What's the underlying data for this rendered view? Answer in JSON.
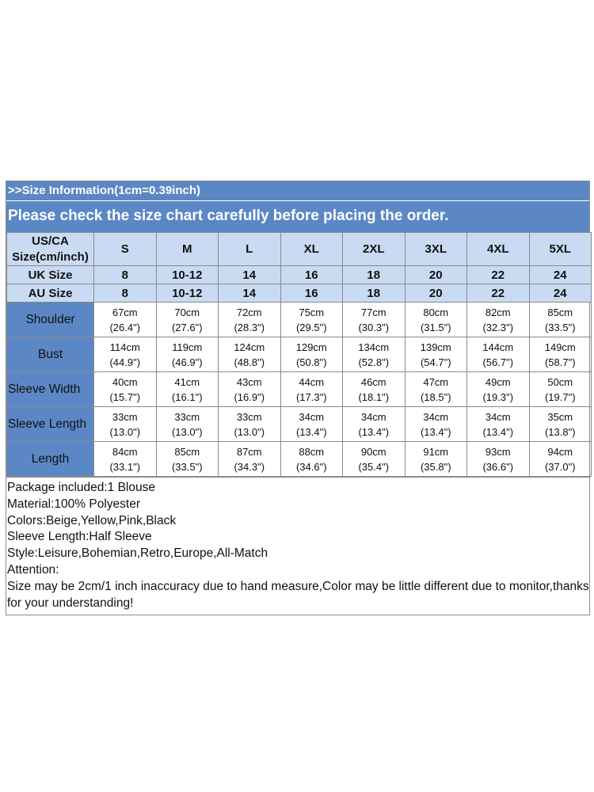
{
  "banner": {
    "line1": ">>Size Information(1cm=0.39inch)",
    "line2": "Please check the size chart carefully before placing the order."
  },
  "table": {
    "header_label": "US/CA Size(cm/inch)",
    "sizes": [
      "S",
      "M",
      "L",
      "XL",
      "2XL",
      "3XL",
      "4XL",
      "5XL"
    ],
    "uk": {
      "label": "UK Size",
      "values": [
        "8",
        "10-12",
        "14",
        "16",
        "18",
        "20",
        "22",
        "24"
      ]
    },
    "au": {
      "label": "AU Size",
      "values": [
        "8",
        "10-12",
        "14",
        "16",
        "18",
        "20",
        "22",
        "24"
      ]
    },
    "rows": [
      {
        "label": "Shoulder",
        "cm": [
          "67cm",
          "70cm",
          "72cm",
          "75cm",
          "77cm",
          "80cm",
          "82cm",
          "85cm"
        ],
        "inch": [
          "(26.4\")",
          "(27.6\")",
          "(28.3\")",
          "(29.5\")",
          "(30.3\")",
          "(31.5\")",
          "(32.3\")",
          "(33.5\")"
        ]
      },
      {
        "label": "Bust",
        "cm": [
          "114cm",
          "119cm",
          "124cm",
          "129cm",
          "134cm",
          "139cm",
          "144cm",
          "149cm"
        ],
        "inch": [
          "(44.9\")",
          "(46.9\")",
          "(48.8\")",
          "(50.8\")",
          "(52.8\")",
          "(54.7\")",
          "(56.7\")",
          "(58.7\")"
        ]
      },
      {
        "label": "Sleeve Width",
        "cm": [
          "40cm",
          "41cm",
          "43cm",
          "44cm",
          "46cm",
          "47cm",
          "49cm",
          "50cm"
        ],
        "inch": [
          "(15.7\")",
          "(16.1\")",
          "(16.9\")",
          "(17.3\")",
          "(18.1\")",
          "(18.5\")",
          "(19.3\")",
          "(19.7\")"
        ]
      },
      {
        "label": "Sleeve Length",
        "cm": [
          "33cm",
          "33cm",
          "33cm",
          "34cm",
          "34cm",
          "34cm",
          "34cm",
          "35cm"
        ],
        "inch": [
          "(13.0\")",
          "(13.0\")",
          "(13.0\")",
          "(13.4\")",
          "(13.4\")",
          "(13.4\")",
          "(13.4\")",
          "(13.8\")"
        ]
      },
      {
        "label": "Length",
        "cm": [
          "84cm",
          "85cm",
          "87cm",
          "88cm",
          "90cm",
          "91cm",
          "93cm",
          "94cm"
        ],
        "inch": [
          "(33.1\")",
          "(33.5\")",
          "(34.3\")",
          "(34.6\")",
          "(35.4\")",
          "(35.8\")",
          "(36.6\")",
          "(37.0\")"
        ]
      }
    ]
  },
  "info": {
    "package": "Package included:1 Blouse",
    "material": "Material:100% Polyester",
    "colors": "Colors:Beige,Yellow,Pink,Black",
    "sleeve": "Sleeve Length:Half Sleeve",
    "style": "Style:Leisure,Bohemian,Retro,Europe,All-Match",
    "attention": "Attention:",
    "note": "Size may be 2cm/1 inch inaccuracy due to hand measure,Color may be little different due to monitor,thanks for your understanding!"
  }
}
